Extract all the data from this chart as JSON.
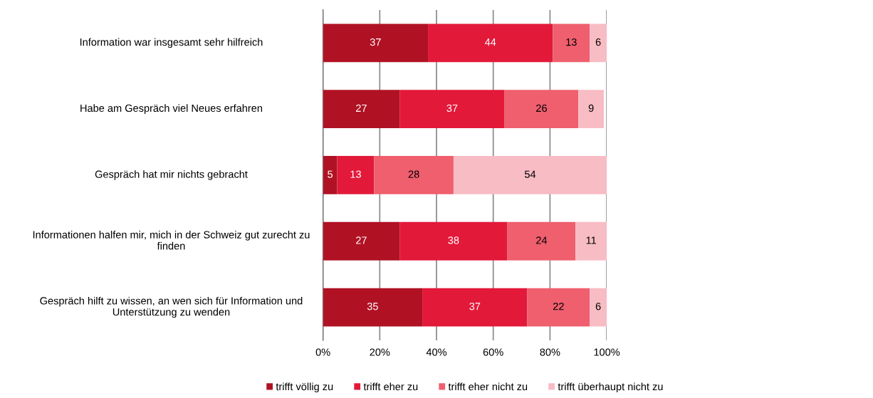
{
  "chart_data": {
    "type": "bar",
    "orientation": "horizontal",
    "stacked": true,
    "categories": [
      "Information war insgesamt sehr hilfreich",
      "Habe am Gespräch viel Neues erfahren",
      "Gespräch hat mir nichts gebracht",
      "Informationen halfen mir, mich in der Schweiz gut zurecht zu\nfinden",
      "Gespräch hilft zu wissen, an wen sich für Information und\nUnterstützung zu wenden"
    ],
    "series": [
      {
        "name": "trifft völlig zu",
        "color": "#b01224",
        "values": [
          37,
          27,
          5,
          27,
          35
        ]
      },
      {
        "name": "trifft eher zu",
        "color": "#e3193a",
        "values": [
          44,
          37,
          13,
          38,
          37
        ]
      },
      {
        "name": "trifft eher nicht zu",
        "color": "#ef5f6e",
        "values": [
          13,
          26,
          28,
          24,
          22
        ]
      },
      {
        "name": "trifft überhaupt nicht zu",
        "color": "#f8bcc4",
        "values": [
          6,
          9,
          54,
          11,
          6
        ]
      }
    ],
    "xlim": [
      0,
      100
    ],
    "xticks": [
      {
        "value": 0,
        "label": "0%"
      },
      {
        "value": 20,
        "label": "20%"
      },
      {
        "value": 40,
        "label": "40%"
      },
      {
        "value": 60,
        "label": "60%"
      },
      {
        "value": 80,
        "label": "80%"
      },
      {
        "value": 100,
        "label": "100%"
      }
    ],
    "grid": "x",
    "legend": "bottom",
    "data_labels": true
  }
}
